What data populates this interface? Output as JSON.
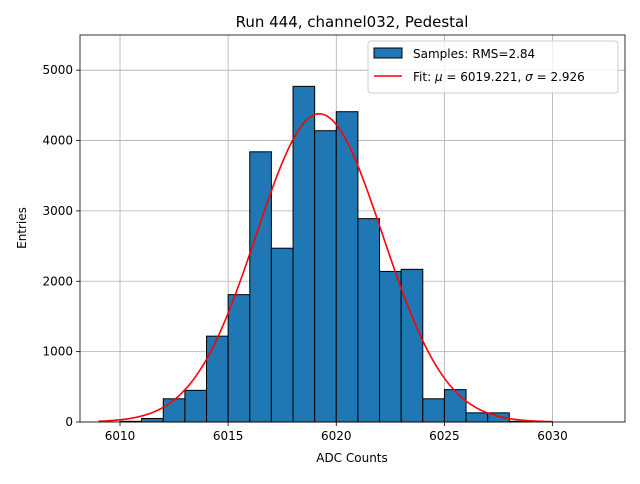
{
  "chart_data": {
    "type": "bar",
    "title": "Run 444, channel032, Pedestal",
    "xlabel": "ADC Counts",
    "ylabel": "Entries",
    "xlim": [
      6008.15,
      6033.35
    ],
    "ylim": [
      0,
      5500
    ],
    "xticks": [
      6010,
      6015,
      6020,
      6025,
      6030
    ],
    "yticks": [
      0,
      1000,
      2000,
      3000,
      4000,
      5000
    ],
    "xtick_labels": [
      "6010",
      "6015",
      "6020",
      "6025",
      "6030"
    ],
    "ytick_labels": [
      "0",
      "1000",
      "2000",
      "3000",
      "4000",
      "5000"
    ],
    "grid": true,
    "legend_position": "top-right",
    "histogram": {
      "name": "Samples: RMS=2.84",
      "color": "#1f77b4",
      "edge_color": "#000000",
      "bins": [
        {
          "x0": 6010,
          "x1": 6011,
          "count": 10
        },
        {
          "x0": 6011,
          "x1": 6012,
          "count": 50
        },
        {
          "x0": 6012,
          "x1": 6013,
          "count": 330
        },
        {
          "x0": 6013,
          "x1": 6014,
          "count": 450
        },
        {
          "x0": 6014,
          "x1": 6015,
          "count": 1220
        },
        {
          "x0": 6015,
          "x1": 6016,
          "count": 1810
        },
        {
          "x0": 6016,
          "x1": 6017,
          "count": 3840
        },
        {
          "x0": 6017,
          "x1": 6018,
          "count": 2470
        },
        {
          "x0": 6018,
          "x1": 6019,
          "count": 4770
        },
        {
          "x0": 6019,
          "x1": 6020,
          "count": 4140
        },
        {
          "x0": 6020,
          "x1": 6021,
          "count": 4410
        },
        {
          "x0": 6021,
          "x1": 6022,
          "count": 2890
        },
        {
          "x0": 6022,
          "x1": 6023,
          "count": 2140
        },
        {
          "x0": 6023,
          "x1": 6024,
          "count": 2170
        },
        {
          "x0": 6024,
          "x1": 6025,
          "count": 330
        },
        {
          "x0": 6025,
          "x1": 6026,
          "count": 460
        },
        {
          "x0": 6026,
          "x1": 6027,
          "count": 130
        },
        {
          "x0": 6027,
          "x1": 6028,
          "count": 130
        },
        {
          "x0": 6028,
          "x1": 6029,
          "count": 10
        }
      ]
    },
    "fit": {
      "name": "Fit: μ = 6019.221, σ = 2.926",
      "name_parts": [
        "Fit: ",
        "μ",
        " = 6019.221, ",
        "σ",
        " = 2.926"
      ],
      "color": "#ff0000",
      "function": "gaussian",
      "mu": 6019.221,
      "sigma": 2.926,
      "amplitude": 4380,
      "x_range": [
        6009,
        6030
      ]
    }
  }
}
